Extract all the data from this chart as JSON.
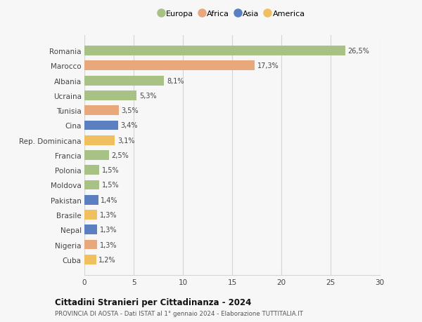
{
  "countries": [
    "Romania",
    "Marocco",
    "Albania",
    "Ucraina",
    "Tunisia",
    "Cina",
    "Rep. Dominicana",
    "Francia",
    "Polonia",
    "Moldova",
    "Pakistan",
    "Brasile",
    "Nepal",
    "Nigeria",
    "Cuba"
  ],
  "values": [
    26.5,
    17.3,
    8.1,
    5.3,
    3.5,
    3.4,
    3.1,
    2.5,
    1.5,
    1.5,
    1.4,
    1.3,
    1.3,
    1.3,
    1.2
  ],
  "labels": [
    "26,5%",
    "17,3%",
    "8,1%",
    "5,3%",
    "3,5%",
    "3,4%",
    "3,1%",
    "2,5%",
    "1,5%",
    "1,5%",
    "1,4%",
    "1,3%",
    "1,3%",
    "1,3%",
    "1,2%"
  ],
  "continents": [
    "Europa",
    "Africa",
    "Europa",
    "Europa",
    "Africa",
    "Asia",
    "America",
    "Europa",
    "Europa",
    "Europa",
    "Asia",
    "America",
    "Asia",
    "Africa",
    "America"
  ],
  "colors": {
    "Europa": "#a8c185",
    "Africa": "#e8a87c",
    "Asia": "#5b7fc1",
    "America": "#f0c060"
  },
  "legend_order": [
    "Europa",
    "Africa",
    "Asia",
    "America"
  ],
  "xlim": [
    0,
    30
  ],
  "xticks": [
    0,
    5,
    10,
    15,
    20,
    25,
    30
  ],
  "title": "Cittadini Stranieri per Cittadinanza - 2024",
  "subtitle": "PROVINCIA DI AOSTA - Dati ISTAT al 1° gennaio 2024 - Elaborazione TUTTITALIA.IT",
  "background_color": "#f7f7f7",
  "grid_color": "#d4d4d4",
  "bar_height": 0.65
}
